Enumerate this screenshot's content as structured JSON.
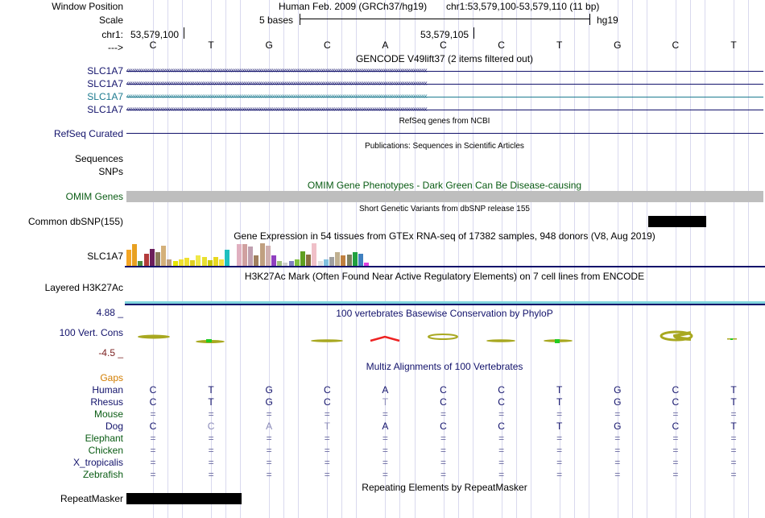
{
  "header": {
    "window_position_label": "Window Position",
    "assembly": "Human Feb. 2009 (GRCh37/hg19)",
    "position": "chr1:53,579,100-53,579,110 (11 bp)",
    "scale_label": "Scale",
    "scale_text": "5 bases",
    "scale_db": "hg19",
    "chrom_label": "chr1:",
    "coord_left": "53,579,100",
    "coord_mid": "53,579,105",
    "strand_label": "--->"
  },
  "dna": [
    "C",
    "T",
    "G",
    "C",
    "A",
    "C",
    "C",
    "T",
    "G",
    "C",
    "T"
  ],
  "tracks": {
    "gencode_title": "GENCODE V49lift37 (2 items filtered out)",
    "gencode_genes": [
      {
        "name": "SLC1A7",
        "color": "#12126b"
      },
      {
        "name": "SLC1A7",
        "color": "#12126b"
      },
      {
        "name": "SLC1A7",
        "color": "#1c7a8f"
      },
      {
        "name": "SLC1A7",
        "color": "#12126b"
      }
    ],
    "refseq_title": "RefSeq genes from NCBI",
    "refseq_label": "RefSeq Curated",
    "publications_title": "Publications: Sequences in Scientific Articles",
    "sequences_label": "Sequences",
    "snps_label": "SNPs",
    "omim_title": "OMIM Gene Phenotypes - Dark Green Can Be Disease-causing",
    "omim_label": "OMIM Genes",
    "dbsnp_title": "Short Genetic Variants from dbSNP release 155",
    "dbsnp_label": "Common dbSNP(155)",
    "gtex_title": "Gene Expression in 54 tissues from GTEx RNA-seq of 17382 samples, 948 donors (V8, Aug 2019)",
    "gtex_label": "SLC1A7",
    "h3k27ac_title": "H3K27Ac Mark (Often Found Near Active Regulatory Elements) on 7 cell lines from ENCODE",
    "h3k27ac_label": "Layered H3K27Ac",
    "phylop_title": "100 vertebrates Basewise Conservation by PhyloP",
    "phylop_label": "100 Vert. Cons",
    "phylop_max": "4.88 _",
    "phylop_min": "-4.5 _",
    "multiz_title": "Multiz Alignments of 100 Vertebrates",
    "gaps_label": "Gaps",
    "repeat_title": "Repeating Elements by RepeatMasker",
    "repeat_label": "RepeatMasker"
  },
  "gtex_bars": [
    {
      "color": "#f5a623",
      "value": 0.7
    },
    {
      "color": "#e8a020",
      "value": 0.95
    },
    {
      "color": "#4a8c3f",
      "value": 0.2
    },
    {
      "color": "#b23a3a",
      "value": 0.55
    },
    {
      "color": "#6b1f5c",
      "value": 0.75
    },
    {
      "color": "#8a7a5a",
      "value": 0.6
    },
    {
      "color": "#d4b07a",
      "value": 0.9
    },
    {
      "color": "#c0a080",
      "value": 0.3
    },
    {
      "color": "#e6e600",
      "value": 0.2
    },
    {
      "color": "#f0e030",
      "value": 0.3
    },
    {
      "color": "#f0e030",
      "value": 0.35
    },
    {
      "color": "#e0d020",
      "value": 0.25
    },
    {
      "color": "#f0e848",
      "value": 0.45
    },
    {
      "color": "#e8e030",
      "value": 0.4
    },
    {
      "color": "#c8c800",
      "value": 0.25
    },
    {
      "color": "#e8d820",
      "value": 0.4
    },
    {
      "color": "#f5e040",
      "value": 0.3
    },
    {
      "color": "#20c0c0",
      "value": 0.7
    },
    {
      "color": "#ffffff",
      "value": 0.0
    },
    {
      "color": "#e0b0c0",
      "value": 0.95
    },
    {
      "color": "#d0a0a0",
      "value": 0.95
    },
    {
      "color": "#c0a0b0",
      "value": 0.85
    },
    {
      "color": "#a08060",
      "value": 0.45
    },
    {
      "color": "#c0a080",
      "value": 1.0
    },
    {
      "color": "#d0b0b0",
      "value": 0.9
    },
    {
      "color": "#9040c0",
      "value": 0.45
    },
    {
      "color": "#a0c080",
      "value": 0.2
    },
    {
      "color": "#d0d0d0",
      "value": 0.15
    },
    {
      "color": "#8080c0",
      "value": 0.2
    },
    {
      "color": "#80c040",
      "value": 0.3
    },
    {
      "color": "#60a020",
      "value": 0.65
    },
    {
      "color": "#8a7040",
      "value": 0.5
    },
    {
      "color": "#f0c0c8",
      "value": 1.0
    },
    {
      "color": "#e0e0e0",
      "value": 0.2
    },
    {
      "color": "#80c0e0",
      "value": 0.3
    },
    {
      "color": "#a0a0a0",
      "value": 0.4
    },
    {
      "color": "#c0b090",
      "value": 0.6
    },
    {
      "color": "#c08040",
      "value": 0.45
    },
    {
      "color": "#808060",
      "value": 0.5
    },
    {
      "color": "#20a040",
      "value": 0.6
    },
    {
      "color": "#4080c0",
      "value": 0.55
    },
    {
      "color": "#e040e0",
      "value": 0.15
    }
  ],
  "multiz": {
    "species": [
      {
        "name": "Human",
        "color": "#12126b",
        "bases": [
          "C",
          "T",
          "G",
          "C",
          "A",
          "C",
          "C",
          "T",
          "G",
          "C",
          "T"
        ]
      },
      {
        "name": "Rhesus",
        "color": "#12126b",
        "bases": [
          "C",
          "T",
          "G",
          "C",
          "T",
          "C",
          "C",
          "T",
          "G",
          "C",
          "T"
        ]
      },
      {
        "name": "Mouse",
        "color": "#0a5c14",
        "bases": [
          "=",
          "=",
          "=",
          "=",
          "=",
          "=",
          "=",
          "=",
          "=",
          "=",
          "="
        ]
      },
      {
        "name": "Dog",
        "color": "#12126b",
        "bases": [
          "C",
          "C",
          "A",
          "T",
          "A",
          "C",
          "C",
          "T",
          "G",
          "C",
          "T"
        ]
      },
      {
        "name": "Elephant",
        "color": "#0a5c14",
        "bases": [
          "=",
          "=",
          "=",
          "=",
          "=",
          "=",
          "=",
          "=",
          "=",
          "=",
          "="
        ]
      },
      {
        "name": "Chicken",
        "color": "#0a5c14",
        "bases": [
          "=",
          "=",
          "=",
          "=",
          "=",
          "=",
          "=",
          "=",
          "=",
          "=",
          "="
        ]
      },
      {
        "name": "X_tropicalis",
        "color": "#12126b",
        "bases": [
          "=",
          "=",
          "=",
          "=",
          "=",
          "=",
          "=",
          "=",
          "=",
          "=",
          "="
        ]
      },
      {
        "name": "Zebrafish",
        "color": "#0a5c14",
        "bases": [
          "=",
          "=",
          "=",
          "=",
          "=",
          "=",
          "=",
          "=",
          "=",
          "=",
          "="
        ]
      }
    ],
    "mismatch": [
      [
        false,
        false,
        false,
        false,
        false,
        false,
        false,
        false,
        false,
        false,
        false
      ],
      [
        false,
        false,
        false,
        false,
        true,
        false,
        false,
        false,
        false,
        false,
        false
      ],
      [
        false,
        false,
        false,
        false,
        false,
        false,
        false,
        false,
        false,
        false,
        false
      ],
      [
        false,
        true,
        true,
        true,
        false,
        false,
        false,
        false,
        false,
        false,
        false
      ],
      [
        false,
        false,
        false,
        false,
        false,
        false,
        false,
        false,
        false,
        false,
        false
      ],
      [
        false,
        false,
        false,
        false,
        false,
        false,
        false,
        false,
        false,
        false,
        false
      ],
      [
        false,
        false,
        false,
        false,
        false,
        false,
        false,
        false,
        false,
        false,
        false
      ],
      [
        false,
        false,
        false,
        false,
        false,
        false,
        false,
        false,
        false,
        false,
        false
      ]
    ]
  }
}
